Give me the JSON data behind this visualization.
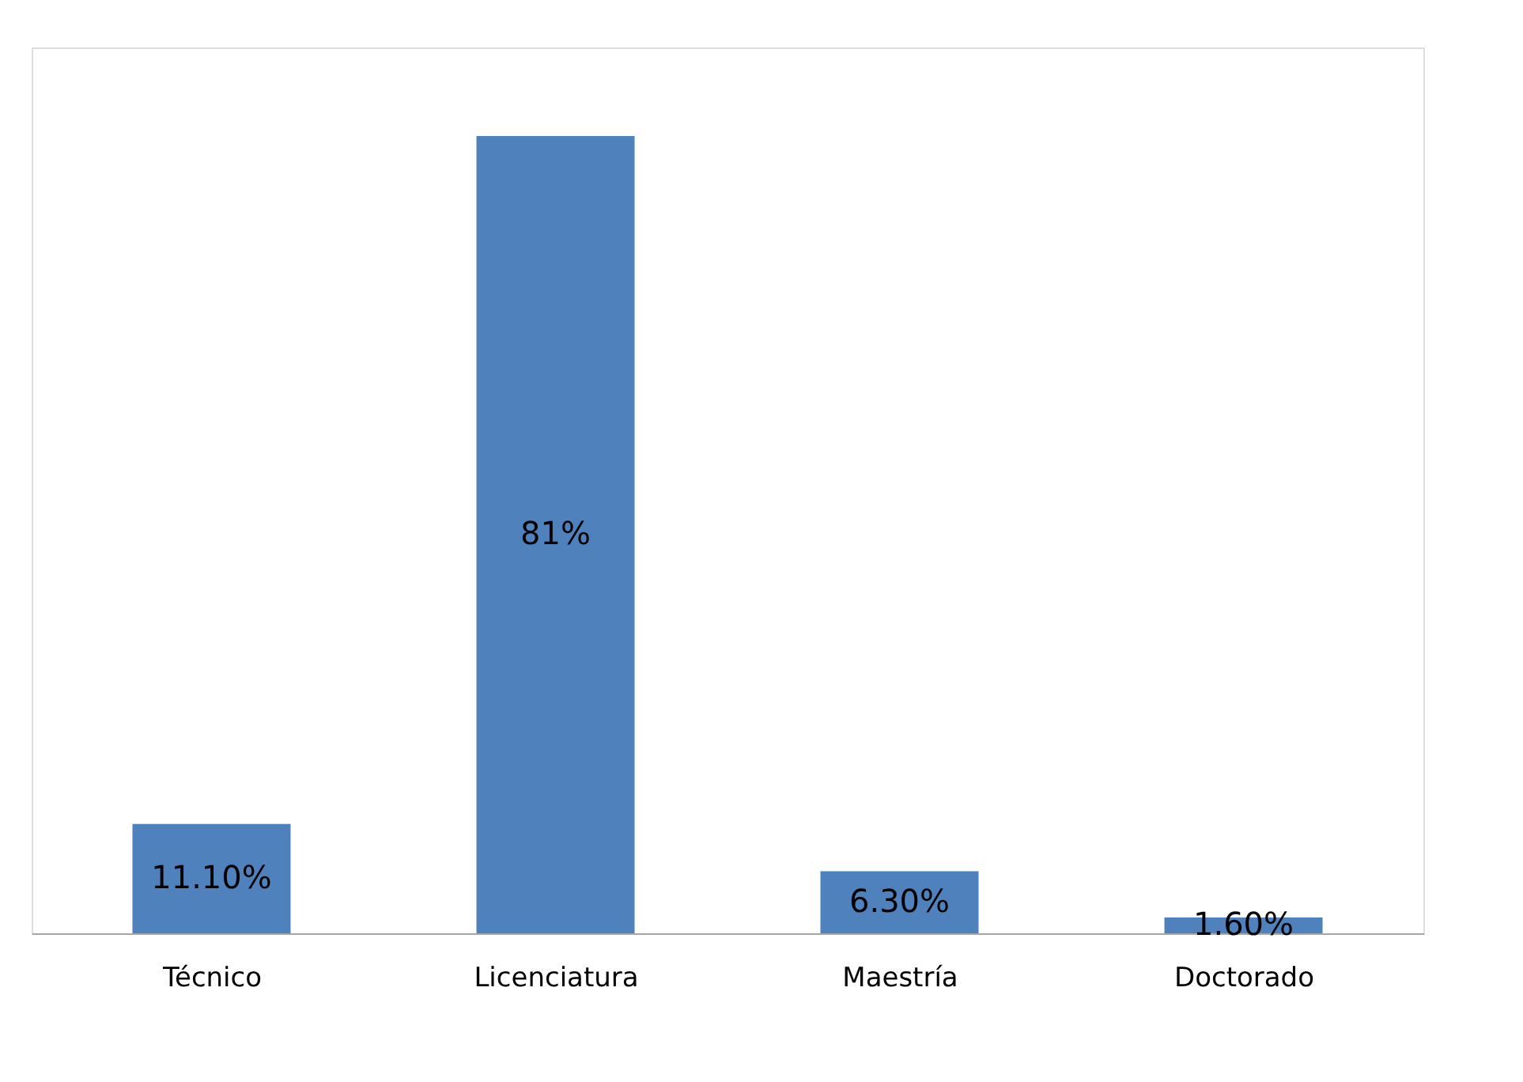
{
  "chart_data": {
    "type": "bar",
    "categories": [
      "Técnico",
      "Licenciatura",
      "Maestría",
      "Doctorado"
    ],
    "values": [
      11.1,
      81,
      6.3,
      1.6
    ],
    "value_labels": [
      "11.10%",
      "81%",
      "6.30%",
      "1.60%"
    ],
    "color": "#4f81bd",
    "grid": false
  }
}
